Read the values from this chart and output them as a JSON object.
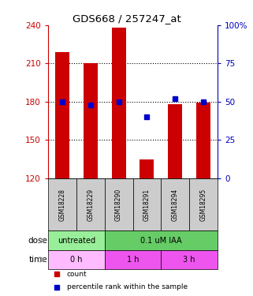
{
  "title": "GDS668 / 257247_at",
  "samples": [
    "GSM18228",
    "GSM18229",
    "GSM18290",
    "GSM18291",
    "GSM18294",
    "GSM18295"
  ],
  "count_values": [
    219,
    210,
    238,
    135,
    178,
    179
  ],
  "percentile_values": [
    50,
    48,
    50,
    40,
    52,
    50
  ],
  "ylim_left": [
    120,
    240
  ],
  "ylim_right": [
    0,
    100
  ],
  "yticks_left": [
    120,
    150,
    180,
    210,
    240
  ],
  "yticks_right": [
    0,
    25,
    50,
    75,
    100
  ],
  "bar_color": "#cc0000",
  "dot_color": "#0000cc",
  "bar_width": 0.5,
  "sample_bg_color": "#cccccc",
  "ylabel_left_color": "#cc0000",
  "ylabel_right_color": "#0000bb",
  "dose_spans": [
    {
      "text": "untreated",
      "start": 0,
      "end": 1,
      "color": "#99ee99"
    },
    {
      "text": "0.1 uM IAA",
      "start": 2,
      "end": 5,
      "color": "#66cc66"
    }
  ],
  "time_spans": [
    {
      "text": "0 h",
      "start": 0,
      "end": 1,
      "color": "#ffbbff"
    },
    {
      "text": "1 h",
      "start": 2,
      "end": 3,
      "color": "#ee55ee"
    },
    {
      "text": "3 h",
      "start": 4,
      "end": 5,
      "color": "#ee55ee"
    }
  ],
  "legend_items": [
    {
      "label": "count",
      "color": "#cc0000"
    },
    {
      "label": "percentile rank within the sample",
      "color": "#0000cc"
    }
  ]
}
